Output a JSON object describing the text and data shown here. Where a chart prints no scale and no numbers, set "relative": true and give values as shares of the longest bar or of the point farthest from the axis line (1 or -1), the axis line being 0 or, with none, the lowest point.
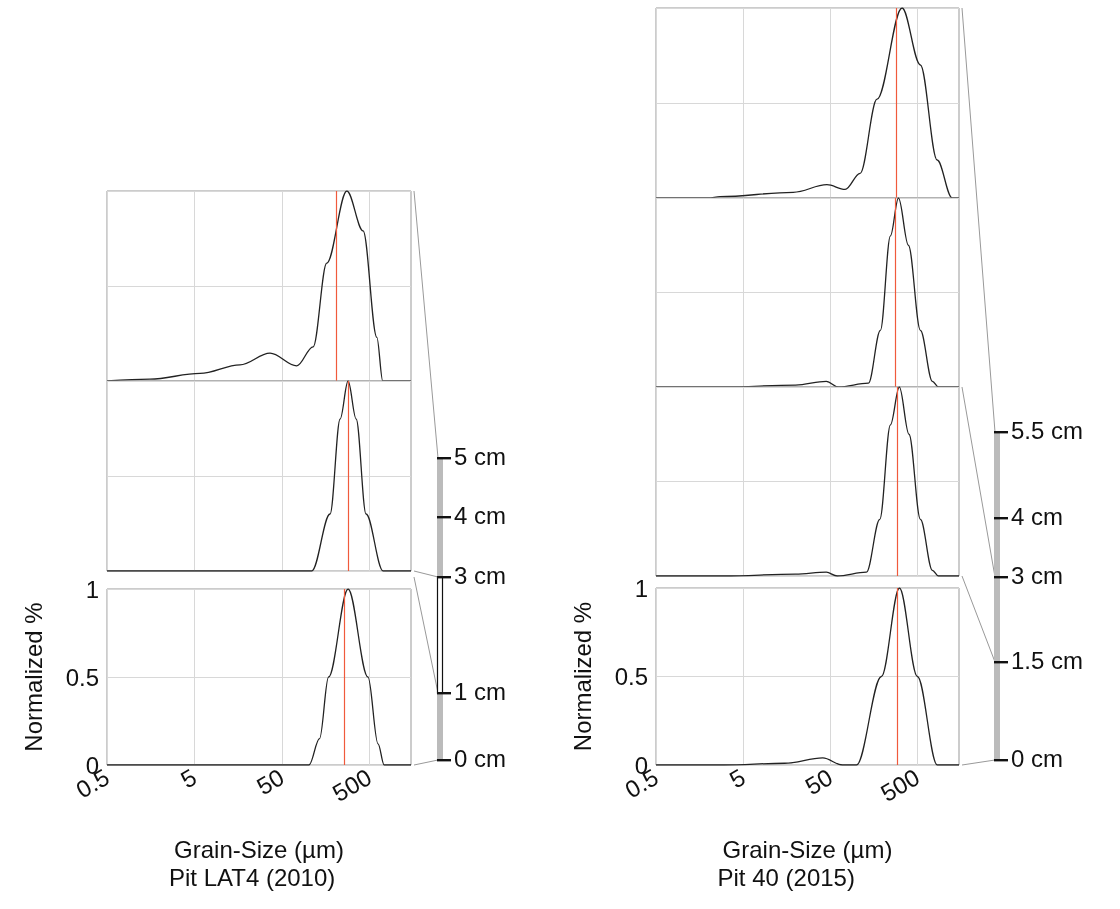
{
  "chart_data": [
    {
      "type": "line",
      "log": "x",
      "grid": true,
      "tick_labels": false,
      "relative": true,
      "xlim": [
        0.5,
        1500
      ],
      "xticks": [
        0.5,
        5,
        50,
        500
      ],
      "ref_lines": [
        {
          "axis": "x",
          "value": 207,
          "color": "#f05a3c"
        }
      ],
      "series": [
        {
          "color": "#222222",
          "x": [
            0.5,
            1.55,
            5.8,
            16.6,
            36.6,
            74,
            114,
            163,
            277,
            425,
            610,
            713,
            1500
          ],
          "values": [
            0,
            0.01,
            0.04,
            0.085,
            0.147,
            0.08,
            0.18,
            0.62,
            1,
            0.79,
            0.23,
            0,
            0
          ]
        }
      ]
    },
    {
      "type": "line",
      "log": "x",
      "grid": true,
      "tick_labels": false,
      "relative": true,
      "xlim": [
        0.5,
        1500
      ],
      "xticks": [
        0.5,
        5,
        50,
        500
      ],
      "ref_lines": [
        {
          "axis": "x",
          "value": 286,
          "color": "#f05a3c"
        }
      ],
      "series": [
        {
          "color": "#222222",
          "x": [
            0.5,
            110,
            178,
            232,
            286,
            354,
            459,
            720,
            1500
          ],
          "values": [
            0,
            0,
            0.3,
            0.8,
            1,
            0.8,
            0.3,
            0,
            0
          ]
        }
      ]
    },
    {
      "type": "line",
      "log": "x",
      "grid": true,
      "xlabel": "Grain-Size (µm)",
      "ylabel": "Normalized %",
      "xlim": [
        0.5,
        1500
      ],
      "xticks": [
        0.5,
        5,
        50,
        500
      ],
      "ylim": [
        0,
        1
      ],
      "yticks": [
        0,
        0.5,
        1
      ],
      "ref_lines": [
        {
          "axis": "x",
          "value": 262,
          "color": "#f05a3c"
        }
      ],
      "annotations": [
        "Pit LAT4 (2010)",
        "5 cm",
        "4 cm",
        "3 cm",
        "1 cm",
        "0 cm"
      ],
      "series": [
        {
          "color": "#222222",
          "x": [
            0.5,
            102,
            135,
            171,
            286,
            483,
            630,
            740,
            1500
          ],
          "values": [
            0,
            0,
            0.15,
            0.5,
            1,
            0.5,
            0.12,
            0,
            0
          ]
        }
      ]
    },
    {
      "type": "line",
      "log": "x",
      "grid": true,
      "tick_labels": false,
      "relative": true,
      "xlim": [
        0.5,
        1500
      ],
      "xticks": [
        0.5,
        5,
        50,
        500
      ],
      "ref_lines": [
        {
          "axis": "x",
          "value": 287,
          "color": "#f05a3c"
        }
      ],
      "series": [
        {
          "color": "#222222",
          "x": [
            0.5,
            2,
            2.72,
            18.8,
            45.8,
            74,
            110,
            172,
            333,
            541,
            842,
            1253,
            1500
          ],
          "values": [
            0,
            0,
            0.007,
            0.03,
            0.07,
            0.045,
            0.13,
            0.52,
            1,
            0.7,
            0.2,
            0,
            0
          ]
        }
      ]
    },
    {
      "type": "line",
      "log": "x",
      "grid": true,
      "tick_labels": false,
      "relative": true,
      "xlim": [
        0.5,
        1500
      ],
      "xticks": [
        0.5,
        5,
        50,
        500
      ],
      "ref_lines": [
        {
          "axis": "x",
          "value": 280,
          "color": "#f05a3c"
        }
      ],
      "series": [
        {
          "color": "#222222",
          "x": [
            0.5,
            3,
            20,
            45,
            62,
            137,
            188,
            245,
            303,
            394,
            541,
            743,
            870,
            1500
          ],
          "values": [
            0,
            0,
            0.01,
            0.03,
            0,
            0.02,
            0.3,
            0.8,
            1,
            0.75,
            0.3,
            0.03,
            0,
            0
          ]
        }
      ]
    },
    {
      "type": "line",
      "log": "x",
      "grid": true,
      "tick_labels": false,
      "relative": true,
      "xlim": [
        0.5,
        1500
      ],
      "xticks": [
        0.5,
        5,
        50,
        500
      ],
      "ref_lines": [
        {
          "axis": "x",
          "value": 295,
          "color": "#f05a3c"
        }
      ],
      "series": [
        {
          "color": "#222222",
          "x": [
            0.5,
            3,
            20,
            45,
            60,
            130,
            185,
            245,
            310,
            400,
            541,
            743,
            870,
            1500
          ],
          "values": [
            0,
            0,
            0.01,
            0.02,
            0,
            0.02,
            0.3,
            0.8,
            1,
            0.75,
            0.3,
            0.03,
            0,
            0
          ]
        }
      ]
    },
    {
      "type": "line",
      "log": "x",
      "grid": true,
      "xlabel": "Grain-Size (µm)",
      "ylabel": "Normalized %",
      "xlim": [
        0.5,
        1500
      ],
      "xticks": [
        0.5,
        5,
        50,
        500
      ],
      "ylim": [
        0,
        1
      ],
      "yticks": [
        0,
        0.5,
        1
      ],
      "ref_lines": [
        {
          "axis": "x",
          "value": 290,
          "color": "#f05a3c"
        }
      ],
      "annotations": [
        "Pit 40 (2015)",
        "5.5 cm",
        "4 cm",
        "3 cm",
        "1.5 cm",
        "0 cm"
      ],
      "series": [
        {
          "color": "#222222",
          "x": [
            0.5,
            3,
            15,
            41,
            69,
            100,
            193,
            311,
            500,
            845,
            1500
          ],
          "values": [
            0,
            0,
            0.01,
            0.04,
            0,
            0,
            0.5,
            1,
            0.5,
            0,
            0
          ]
        }
      ]
    }
  ]
}
